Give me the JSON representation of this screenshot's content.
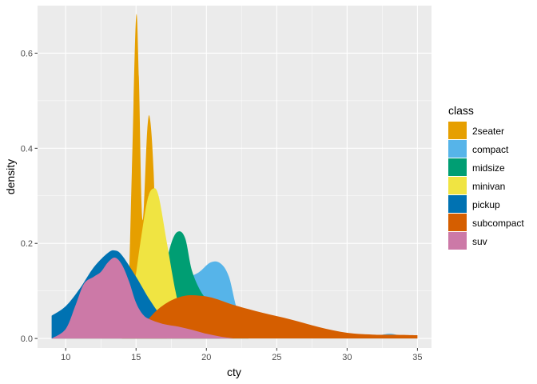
{
  "chart_data": {
    "type": "area",
    "subtype": "density",
    "xlabel": "cty",
    "ylabel": "density",
    "xlim": [
      8,
      36
    ],
    "ylim": [
      -0.02,
      0.7
    ],
    "x_ticks": [
      10,
      15,
      20,
      25,
      30,
      35
    ],
    "y_ticks": [
      0.0,
      0.2,
      0.4,
      0.6
    ],
    "y_tick_labels": [
      "0.0",
      "0.2",
      "0.4",
      "0.6"
    ],
    "grid": true,
    "legend": {
      "title": "class",
      "position": "right"
    },
    "series": [
      {
        "name": "2seater",
        "color": "#E69F00",
        "points": [
          [
            14,
            0
          ],
          [
            14.4,
            0.05
          ],
          [
            14.7,
            0.35
          ],
          [
            15,
            0.675
          ],
          [
            15.2,
            0.55
          ],
          [
            15.45,
            0.25
          ],
          [
            15.8,
            0.44
          ],
          [
            16,
            0.46
          ],
          [
            16.25,
            0.35
          ],
          [
            16.5,
            0.12
          ],
          [
            16.8,
            0.02
          ],
          [
            17.2,
            0
          ]
        ]
      },
      {
        "name": "compact",
        "color": "#56B4E9",
        "points": [
          [
            9,
            0
          ],
          [
            12,
            0.01
          ],
          [
            15,
            0.02
          ],
          [
            17,
            0.06
          ],
          [
            18.5,
            0.12
          ],
          [
            19.5,
            0.14
          ],
          [
            20.3,
            0.16
          ],
          [
            21,
            0.158
          ],
          [
            21.6,
            0.13
          ],
          [
            22.2,
            0.06
          ],
          [
            23,
            0.02
          ],
          [
            25,
            0.005
          ],
          [
            31,
            0.002
          ],
          [
            32.5,
            0.008
          ],
          [
            33,
            0.01
          ],
          [
            33.5,
            0.008
          ],
          [
            34.5,
            0.001
          ],
          [
            35,
            0
          ]
        ]
      },
      {
        "name": "midsize",
        "color": "#009E73",
        "points": [
          [
            14,
            0
          ],
          [
            15,
            0.01
          ],
          [
            16,
            0.06
          ],
          [
            16.8,
            0.12
          ],
          [
            17.5,
            0.2
          ],
          [
            18,
            0.225
          ],
          [
            18.5,
            0.21
          ],
          [
            19,
            0.14
          ],
          [
            19.8,
            0.09
          ],
          [
            20.5,
            0.08
          ],
          [
            21.2,
            0.07
          ],
          [
            21.8,
            0.04
          ],
          [
            22.5,
            0.01
          ],
          [
            23,
            0
          ]
        ]
      },
      {
        "name": "minivan",
        "color": "#F0E442",
        "points": [
          [
            14,
            0
          ],
          [
            14.7,
            0.08
          ],
          [
            15.3,
            0.2
          ],
          [
            15.8,
            0.29
          ],
          [
            16.2,
            0.315
          ],
          [
            16.6,
            0.3
          ],
          [
            17.2,
            0.2
          ],
          [
            17.8,
            0.1
          ],
          [
            18.3,
            0.04
          ],
          [
            19,
            0.01
          ],
          [
            20,
            0
          ]
        ]
      },
      {
        "name": "pickup",
        "color": "#0072B2",
        "points": [
          [
            9,
            0.048
          ],
          [
            10,
            0.068
          ],
          [
            11,
            0.105
          ],
          [
            12,
            0.15
          ],
          [
            13,
            0.18
          ],
          [
            13.5,
            0.185
          ],
          [
            14,
            0.175
          ],
          [
            15,
            0.13
          ],
          [
            16,
            0.08
          ],
          [
            17,
            0.04
          ],
          [
            18,
            0.02
          ],
          [
            19,
            0.01
          ],
          [
            20,
            0.003
          ],
          [
            21,
            0
          ]
        ]
      },
      {
        "name": "subcompact",
        "color": "#D55E00",
        "points": [
          [
            9,
            0
          ],
          [
            13,
            0.004
          ],
          [
            14.5,
            0.012
          ],
          [
            15.5,
            0.03
          ],
          [
            16.5,
            0.06
          ],
          [
            17.5,
            0.08
          ],
          [
            18.5,
            0.09
          ],
          [
            19.5,
            0.09
          ],
          [
            20.5,
            0.085
          ],
          [
            22,
            0.07
          ],
          [
            24,
            0.054
          ],
          [
            26,
            0.04
          ],
          [
            28,
            0.024
          ],
          [
            30,
            0.012
          ],
          [
            32,
            0.008
          ],
          [
            33,
            0.008
          ],
          [
            35,
            0.007
          ]
        ]
      },
      {
        "name": "suv",
        "color": "#CC79A7",
        "points": [
          [
            9,
            0
          ],
          [
            10,
            0.02
          ],
          [
            10.7,
            0.07
          ],
          [
            11.3,
            0.115
          ],
          [
            12,
            0.13
          ],
          [
            12.5,
            0.14
          ],
          [
            13,
            0.16
          ],
          [
            13.5,
            0.17
          ],
          [
            14,
            0.155
          ],
          [
            14.5,
            0.12
          ],
          [
            15,
            0.075
          ],
          [
            15.5,
            0.05
          ],
          [
            16,
            0.04
          ],
          [
            17,
            0.03
          ],
          [
            18,
            0.025
          ],
          [
            19,
            0.018
          ],
          [
            20,
            0.01
          ],
          [
            21,
            0.004
          ],
          [
            22,
            0
          ]
        ]
      }
    ],
    "draw_order": [
      "2seater",
      "compact",
      "midsize",
      "minivan",
      "pickup",
      "subcompact",
      "suv"
    ]
  }
}
